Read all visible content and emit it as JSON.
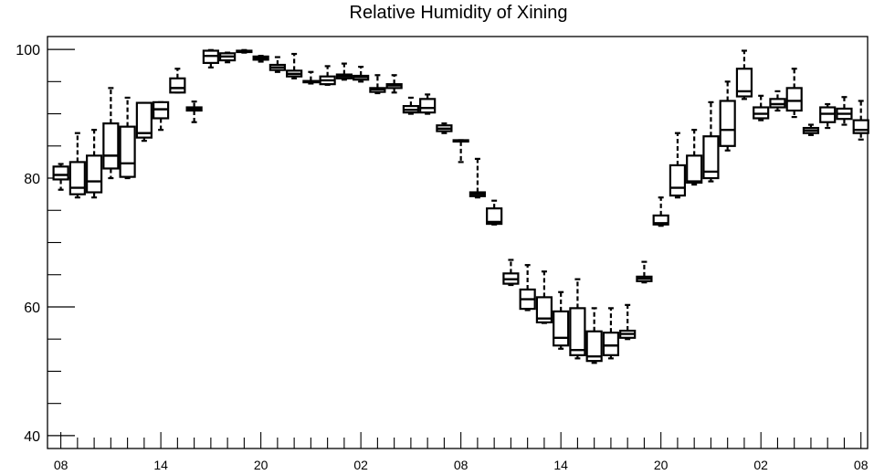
{
  "chart_data": {
    "type": "box",
    "title": "Relative Humidity of Xining",
    "xlabel": "",
    "ylabel": "",
    "ylim": [
      38,
      102
    ],
    "y_ticks": [
      40,
      60,
      80,
      100
    ],
    "x_tick_labels": [
      "08",
      "14",
      "20",
      "02",
      "08",
      "14",
      "20",
      "02",
      "08"
    ],
    "x_tick_hours": [
      0,
      6,
      12,
      18,
      24,
      30,
      36,
      42,
      48
    ],
    "x_range_hours": [
      -0.8,
      48.4
    ],
    "grid": false,
    "boxes": [
      {
        "hour": 0,
        "whislo": 78.2,
        "q1": 79.8,
        "med": 80.5,
        "q3": 81.8,
        "whishi": 82.2
      },
      {
        "hour": 1,
        "whislo": 77.0,
        "q1": 77.5,
        "med": 78.5,
        "q3": 82.5,
        "whishi": 87.0
      },
      {
        "hour": 2,
        "whislo": 77.0,
        "q1": 77.8,
        "med": 79.5,
        "q3": 83.5,
        "whishi": 87.5
      },
      {
        "hour": 3,
        "whislo": 80.0,
        "q1": 81.5,
        "med": 83.5,
        "q3": 88.5,
        "whishi": 94.0
      },
      {
        "hour": 4,
        "whislo": 80.0,
        "q1": 80.2,
        "med": 82.3,
        "q3": 88.0,
        "whishi": 92.5
      },
      {
        "hour": 5,
        "whislo": 85.8,
        "q1": 86.3,
        "med": 87.0,
        "q3": 91.7,
        "whishi": 91.7
      },
      {
        "hour": 6,
        "whislo": 87.5,
        "q1": 89.3,
        "med": 90.7,
        "q3": 91.8,
        "whishi": 91.8
      },
      {
        "hour": 7,
        "whislo": 93.3,
        "q1": 93.3,
        "med": 94.0,
        "q3": 95.5,
        "whishi": 97.0
      },
      {
        "hour": 8,
        "whislo": 88.7,
        "q1": 90.5,
        "med": 90.8,
        "q3": 91.0,
        "whishi": 91.9
      },
      {
        "hour": 9,
        "whislo": 97.2,
        "q1": 97.9,
        "med": 99.0,
        "q3": 99.8,
        "whishi": 99.9
      },
      {
        "hour": 10,
        "whislo": 98.0,
        "q1": 98.3,
        "med": 98.9,
        "q3": 99.4,
        "whishi": 99.5
      },
      {
        "hour": 11,
        "whislo": 99.5,
        "q1": 99.6,
        "med": 99.7,
        "q3": 99.8,
        "whishi": 99.9
      },
      {
        "hour": 12,
        "whislo": 98.1,
        "q1": 98.4,
        "med": 98.7,
        "q3": 98.9,
        "whishi": 99.0
      },
      {
        "hour": 13,
        "whislo": 96.5,
        "q1": 96.8,
        "med": 97.2,
        "q3": 97.6,
        "whishi": 98.8
      },
      {
        "hour": 14,
        "whislo": 95.5,
        "q1": 95.8,
        "med": 96.2,
        "q3": 96.7,
        "whishi": 99.3
      },
      {
        "hour": 15,
        "whislo": 94.7,
        "q1": 94.9,
        "med": 95.0,
        "q3": 95.1,
        "whishi": 96.5
      },
      {
        "hour": 16,
        "whislo": 94.5,
        "q1": 94.6,
        "med": 95.2,
        "q3": 95.8,
        "whishi": 97.4
      },
      {
        "hour": 17,
        "whislo": 95.3,
        "q1": 95.5,
        "med": 95.8,
        "q3": 96.1,
        "whishi": 97.8
      },
      {
        "hour": 18,
        "whislo": 95.0,
        "q1": 95.3,
        "med": 95.7,
        "q3": 95.9,
        "whishi": 97.3
      },
      {
        "hour": 19,
        "whislo": 93.2,
        "q1": 93.4,
        "med": 93.8,
        "q3": 94.0,
        "whishi": 96.0
      },
      {
        "hour": 20,
        "whislo": 93.3,
        "q1": 94.0,
        "med": 94.4,
        "q3": 94.6,
        "whishi": 96.0
      },
      {
        "hour": 21,
        "whislo": 90.0,
        "q1": 90.2,
        "med": 90.6,
        "q3": 91.2,
        "whishi": 92.5
      },
      {
        "hour": 22,
        "whislo": 90.0,
        "q1": 90.2,
        "med": 90.9,
        "q3": 92.3,
        "whishi": 93.0
      },
      {
        "hour": 23,
        "whislo": 87.0,
        "q1": 87.3,
        "med": 87.7,
        "q3": 88.2,
        "whishi": 88.5
      },
      {
        "hour": 24,
        "whislo": 82.5,
        "q1": 85.7,
        "med": 85.8,
        "q3": 85.9,
        "whishi": 85.9
      },
      {
        "hour": 25,
        "whislo": 77.0,
        "q1": 77.2,
        "med": 77.5,
        "q3": 77.8,
        "whishi": 83.0
      },
      {
        "hour": 26,
        "whislo": 72.8,
        "q1": 72.9,
        "med": 73.2,
        "q3": 75.3,
        "whishi": 76.5
      },
      {
        "hour": 27,
        "whislo": 63.4,
        "q1": 63.6,
        "med": 64.3,
        "q3": 65.2,
        "whishi": 67.3
      },
      {
        "hour": 28,
        "whislo": 59.5,
        "q1": 59.7,
        "med": 61.2,
        "q3": 62.7,
        "whishi": 66.5
      },
      {
        "hour": 29,
        "whislo": 57.5,
        "q1": 57.6,
        "med": 58.2,
        "q3": 61.5,
        "whishi": 65.5
      },
      {
        "hour": 30,
        "whislo": 53.5,
        "q1": 54.0,
        "med": 55.2,
        "q3": 59.3,
        "whishi": 62.3
      },
      {
        "hour": 31,
        "whislo": 52.0,
        "q1": 52.5,
        "med": 53.3,
        "q3": 59.8,
        "whishi": 64.3
      },
      {
        "hour": 32,
        "whislo": 51.3,
        "q1": 51.6,
        "med": 52.3,
        "q3": 56.2,
        "whishi": 59.8
      },
      {
        "hour": 33,
        "whislo": 52.0,
        "q1": 52.5,
        "med": 54.0,
        "q3": 56.0,
        "whishi": 59.8
      },
      {
        "hour": 34,
        "whislo": 55.0,
        "q1": 55.2,
        "med": 55.8,
        "q3": 56.3,
        "whishi": 60.3
      },
      {
        "hour": 35,
        "whislo": 63.8,
        "q1": 64.0,
        "med": 64.4,
        "q3": 64.7,
        "whishi": 67.0
      },
      {
        "hour": 36,
        "whislo": 72.6,
        "q1": 72.8,
        "med": 73.0,
        "q3": 74.2,
        "whishi": 77.0
      },
      {
        "hour": 37,
        "whislo": 77.0,
        "q1": 77.3,
        "med": 78.5,
        "q3": 82.0,
        "whishi": 87.0
      },
      {
        "hour": 38,
        "whislo": 79.0,
        "q1": 79.3,
        "med": 79.5,
        "q3": 83.5,
        "whishi": 87.5
      },
      {
        "hour": 39,
        "whislo": 79.5,
        "q1": 80.0,
        "med": 81.0,
        "q3": 86.5,
        "whishi": 91.8
      },
      {
        "hour": 40,
        "whislo": 84.3,
        "q1": 85.0,
        "med": 87.5,
        "q3": 92.0,
        "whishi": 95.0
      },
      {
        "hour": 41,
        "whislo": 92.3,
        "q1": 92.7,
        "med": 93.5,
        "q3": 97.0,
        "whishi": 99.8
      },
      {
        "hour": 42,
        "whislo": 89.0,
        "q1": 89.3,
        "med": 90.0,
        "q3": 91.0,
        "whishi": 92.8
      },
      {
        "hour": 43,
        "whislo": 90.5,
        "q1": 91.0,
        "med": 91.5,
        "q3": 92.3,
        "whishi": 93.5
      },
      {
        "hour": 44,
        "whislo": 89.5,
        "q1": 90.5,
        "med": 92.0,
        "q3": 94.0,
        "whishi": 97.0
      },
      {
        "hour": 45,
        "whislo": 86.7,
        "q1": 87.0,
        "med": 87.4,
        "q3": 87.8,
        "whishi": 88.3
      },
      {
        "hour": 46,
        "whislo": 87.8,
        "q1": 88.7,
        "med": 90.0,
        "q3": 91.0,
        "whishi": 91.5
      },
      {
        "hour": 47,
        "whislo": 88.3,
        "q1": 89.2,
        "med": 90.0,
        "q3": 90.8,
        "whishi": 92.6
      },
      {
        "hour": 48,
        "whislo": 86.0,
        "q1": 87.0,
        "med": 87.5,
        "q3": 89.0,
        "whishi": 92.0
      }
    ]
  }
}
